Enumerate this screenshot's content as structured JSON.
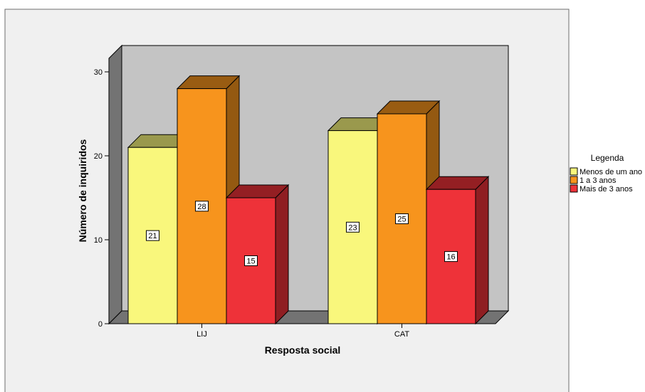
{
  "chart_data": {
    "type": "bar",
    "title": "",
    "xlabel": "Resposta social",
    "ylabel": "Número de inquiridos",
    "categories": [
      "LIJ",
      "CAT"
    ],
    "series": [
      {
        "name": "Menos de um ano",
        "values": [
          21,
          23
        ],
        "color": "#f9f77c"
      },
      {
        "name": "1 a 3 anos",
        "values": [
          28,
          25
        ],
        "color": "#f7941d"
      },
      {
        "name": "Mais de 3 anos",
        "values": [
          15,
          16
        ],
        "color": "#ee3239"
      }
    ],
    "ylim": [
      0,
      30
    ],
    "yticks": [
      0,
      10,
      20,
      30
    ],
    "legend": {
      "title": "Legenda",
      "position": "right"
    },
    "data_labels": true,
    "grid": false,
    "style": "3d"
  },
  "colors": {
    "frame_background": "#f0f0f0",
    "back_wall": "#c4c4c4",
    "side_wall": "#737373",
    "floor": "#737373"
  }
}
